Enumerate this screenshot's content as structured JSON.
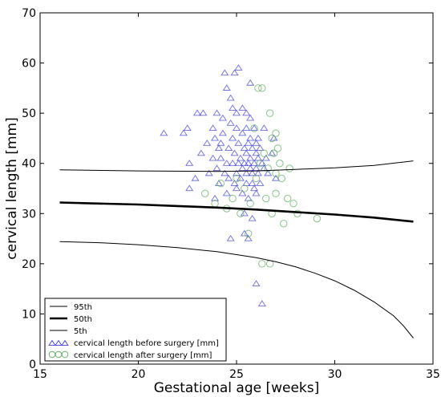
{
  "chart_data": {
    "type": "scatter",
    "xlabel": "Gestational age [weeks]",
    "ylabel": "cervical length [mm]",
    "xlim": [
      15,
      35
    ],
    "ylim": [
      0,
      70
    ],
    "xticks": [
      "15",
      "20",
      "25",
      "30",
      "35"
    ],
    "yticks": [
      "0",
      "10",
      "20",
      "30",
      "40",
      "50",
      "60",
      "70"
    ],
    "grid": false,
    "legend_position": "lower-left",
    "colors": {
      "before": "#3b3bd6",
      "after": "#5aab5a",
      "line": "#000000"
    },
    "lines": [
      {
        "name": "95th",
        "width": "thin",
        "points": [
          [
            16,
            38.7
          ],
          [
            20,
            38.5
          ],
          [
            24,
            38.4
          ],
          [
            26,
            38.5
          ],
          [
            28,
            38.8
          ],
          [
            30,
            39.1
          ],
          [
            32,
            39.6
          ],
          [
            34,
            40.5
          ]
        ]
      },
      {
        "name": "50th",
        "width": "thick",
        "points": [
          [
            16,
            32.2
          ],
          [
            18,
            32.0
          ],
          [
            20,
            31.8
          ],
          [
            22,
            31.5
          ],
          [
            24,
            31.2
          ],
          [
            26,
            30.8
          ],
          [
            28,
            30.3
          ],
          [
            30,
            29.8
          ],
          [
            32,
            29.2
          ],
          [
            34,
            28.4
          ]
        ]
      },
      {
        "name": "5th",
        "width": "thin",
        "points": [
          [
            16,
            24.4
          ],
          [
            18,
            24.2
          ],
          [
            20,
            23.8
          ],
          [
            22,
            23.2
          ],
          [
            24,
            22.4
          ],
          [
            26,
            21.2
          ],
          [
            27,
            20.4
          ],
          [
            28,
            19.4
          ],
          [
            29,
            18.1
          ],
          [
            30,
            16.6
          ],
          [
            31,
            14.7
          ],
          [
            32,
            12.4
          ],
          [
            33,
            9.6
          ],
          [
            33.5,
            7.6
          ],
          [
            34,
            5.2
          ]
        ]
      }
    ],
    "series": [
      {
        "name": "cervical length before surgery [mm]",
        "marker": "triangle",
        "points": [
          [
            22.5,
            47
          ],
          [
            22.3,
            46
          ],
          [
            21.3,
            46
          ],
          [
            22.6,
            40
          ],
          [
            22.6,
            35
          ],
          [
            22.9,
            37
          ],
          [
            23.2,
            42
          ],
          [
            23.0,
            50
          ],
          [
            23.3,
            50
          ],
          [
            23.5,
            44
          ],
          [
            23.6,
            38
          ],
          [
            23.8,
            47
          ],
          [
            23.8,
            41
          ],
          [
            23.9,
            45
          ],
          [
            23.9,
            33
          ],
          [
            24.0,
            50
          ],
          [
            24.0,
            39
          ],
          [
            24.1,
            43
          ],
          [
            24.1,
            36
          ],
          [
            24.2,
            44
          ],
          [
            24.2,
            41
          ],
          [
            24.3,
            49
          ],
          [
            24.3,
            46
          ],
          [
            24.4,
            58
          ],
          [
            24.4,
            38
          ],
          [
            24.5,
            55
          ],
          [
            24.5,
            40
          ],
          [
            24.5,
            34
          ],
          [
            24.6,
            43
          ],
          [
            24.6,
            37
          ],
          [
            24.7,
            53
          ],
          [
            24.7,
            48
          ],
          [
            24.7,
            25
          ],
          [
            24.8,
            51
          ],
          [
            24.8,
            45
          ],
          [
            24.8,
            40
          ],
          [
            24.9,
            58
          ],
          [
            24.9,
            42
          ],
          [
            24.9,
            36
          ],
          [
            25.0,
            50
          ],
          [
            25.0,
            47
          ],
          [
            25.0,
            38
          ],
          [
            25.0,
            35
          ],
          [
            25.1,
            59
          ],
          [
            25.1,
            44
          ],
          [
            25.1,
            40
          ],
          [
            25.2,
            41
          ],
          [
            25.2,
            37
          ],
          [
            25.3,
            51
          ],
          [
            25.3,
            46
          ],
          [
            25.3,
            39
          ],
          [
            25.3,
            34
          ],
          [
            25.4,
            43
          ],
          [
            25.4,
            40
          ],
          [
            25.4,
            30
          ],
          [
            25.4,
            26
          ],
          [
            25.5,
            50
          ],
          [
            25.5,
            47
          ],
          [
            25.5,
            42
          ],
          [
            25.5,
            38
          ],
          [
            25.5,
            36
          ],
          [
            25.6,
            44
          ],
          [
            25.6,
            40
          ],
          [
            25.6,
            33
          ],
          [
            25.6,
            25
          ],
          [
            25.7,
            56
          ],
          [
            25.7,
            49
          ],
          [
            25.7,
            45
          ],
          [
            25.7,
            41
          ],
          [
            25.7,
            39
          ],
          [
            25.8,
            43
          ],
          [
            25.8,
            38
          ],
          [
            25.8,
            36
          ],
          [
            25.8,
            29
          ],
          [
            25.9,
            47
          ],
          [
            25.9,
            40
          ],
          [
            25.9,
            35
          ],
          [
            26.0,
            44
          ],
          [
            26.0,
            42
          ],
          [
            26.0,
            39
          ],
          [
            26.0,
            34
          ],
          [
            26.0,
            16
          ],
          [
            26.1,
            45
          ],
          [
            26.1,
            41
          ],
          [
            26.1,
            38
          ],
          [
            26.2,
            43
          ],
          [
            26.2,
            36
          ],
          [
            26.3,
            40
          ],
          [
            26.3,
            12
          ],
          [
            26.4,
            47
          ],
          [
            26.4,
            39
          ],
          [
            26.5,
            41
          ],
          [
            26.6,
            38
          ],
          [
            26.8,
            42
          ],
          [
            26.9,
            45
          ],
          [
            27.0,
            37
          ]
        ]
      },
      {
        "name": "cervical length after surgery [mm]",
        "marker": "circle",
        "points": [
          [
            23.4,
            34
          ],
          [
            23.9,
            32
          ],
          [
            24.2,
            36
          ],
          [
            24.5,
            31
          ],
          [
            24.8,
            33
          ],
          [
            25.0,
            37
          ],
          [
            25.2,
            30
          ],
          [
            25.4,
            35
          ],
          [
            25.6,
            26
          ],
          [
            25.7,
            32
          ],
          [
            25.9,
            47
          ],
          [
            26.0,
            37
          ],
          [
            26.1,
            55
          ],
          [
            26.2,
            40
          ],
          [
            26.3,
            55
          ],
          [
            26.4,
            42
          ],
          [
            26.3,
            20
          ],
          [
            26.5,
            33
          ],
          [
            26.6,
            39
          ],
          [
            26.7,
            20
          ],
          [
            26.7,
            50
          ],
          [
            26.8,
            45
          ],
          [
            26.8,
            30
          ],
          [
            26.9,
            42
          ],
          [
            27.0,
            38
          ],
          [
            27.0,
            34
          ],
          [
            27.0,
            46
          ],
          [
            27.1,
            43
          ],
          [
            27.2,
            40
          ],
          [
            27.3,
            37
          ],
          [
            27.4,
            28
          ],
          [
            27.6,
            33
          ],
          [
            27.7,
            39
          ],
          [
            27.9,
            32
          ],
          [
            28.1,
            30
          ],
          [
            29.1,
            29
          ]
        ]
      }
    ],
    "legend": {
      "entries": [
        {
          "label": "95th",
          "kind": "thin-line"
        },
        {
          "label": "50th",
          "kind": "thick-line"
        },
        {
          "label": "5th",
          "kind": "thin-line"
        },
        {
          "label": "cervical length before surgery [mm]",
          "kind": "triangle"
        },
        {
          "label": "cervical length after surgery [mm]",
          "kind": "circle"
        }
      ]
    }
  }
}
